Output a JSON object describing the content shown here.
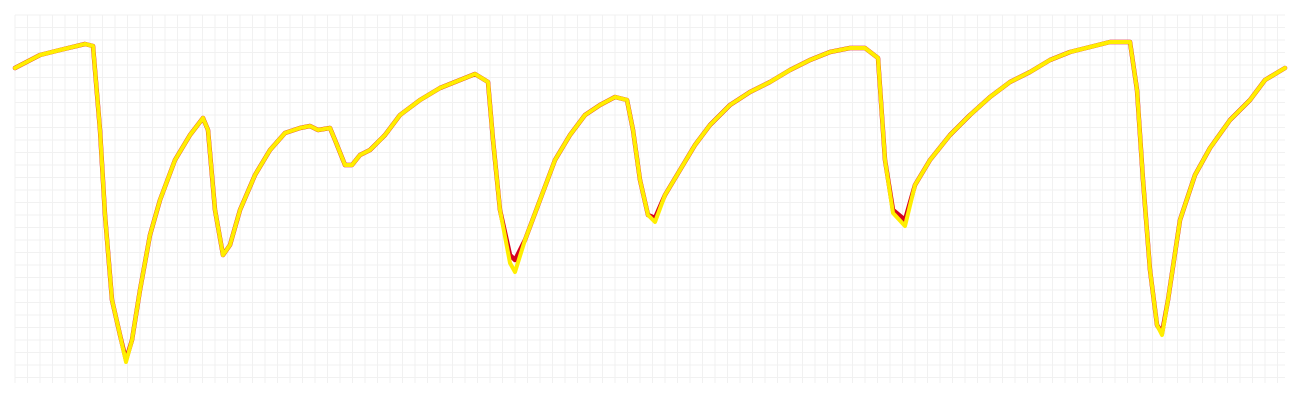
{
  "chart_data": {
    "type": "line",
    "x": [
      15,
      40,
      60,
      85,
      93,
      100,
      105,
      112,
      120,
      126,
      132,
      140,
      150,
      160,
      175,
      190,
      203,
      208,
      215,
      223,
      230,
      240,
      255,
      270,
      285,
      300,
      310,
      318,
      330,
      335,
      345,
      352,
      360,
      370,
      385,
      400,
      420,
      440,
      460,
      475,
      488,
      493,
      500,
      510,
      515,
      525,
      540,
      555,
      570,
      585,
      600,
      615,
      627,
      633,
      640,
      648,
      655,
      665,
      680,
      695,
      710,
      730,
      750,
      770,
      790,
      810,
      830,
      850,
      865,
      878,
      885,
      893,
      905,
      915,
      930,
      950,
      970,
      990,
      1010,
      1030,
      1050,
      1070,
      1090,
      1110,
      1130,
      1137,
      1143,
      1150,
      1157,
      1162,
      1168,
      1180,
      1195,
      1210,
      1230,
      1250,
      1265,
      1285
    ],
    "series": [
      {
        "color": "#d7001f",
        "values": [
          315,
          328,
          333,
          339,
          337,
          253,
          168,
          83,
          48,
          23,
          43,
          93,
          148,
          183,
          223,
          248,
          265,
          253,
          173,
          128,
          138,
          173,
          208,
          233,
          250,
          255,
          257,
          253,
          255,
          243,
          218,
          218,
          228,
          233,
          248,
          268,
          283,
          295,
          303,
          309,
          301,
          243,
          173,
          128,
          123,
          143,
          183,
          223,
          248,
          268,
          278,
          286,
          283,
          253,
          203,
          168,
          165,
          188,
          213,
          238,
          258,
          278,
          291,
          301,
          313,
          323,
          331,
          335,
          335,
          325,
          223,
          173,
          163,
          198,
          223,
          248,
          268,
          286,
          301,
          311,
          323,
          331,
          336,
          341,
          341,
          293,
          203,
          113,
          58,
          50,
          83,
          163,
          208,
          235,
          263,
          283,
          303,
          315
        ]
      },
      {
        "color": "#ffee00",
        "values": [
          315,
          328,
          333,
          339,
          337,
          253,
          168,
          83,
          48,
          21,
          43,
          93,
          148,
          183,
          223,
          248,
          265,
          253,
          173,
          128,
          138,
          173,
          208,
          233,
          250,
          255,
          257,
          253,
          255,
          243,
          218,
          218,
          228,
          233,
          248,
          268,
          283,
          295,
          303,
          309,
          301,
          243,
          173,
          120,
          111,
          143,
          183,
          223,
          248,
          268,
          278,
          286,
          283,
          253,
          203,
          168,
          161,
          188,
          213,
          238,
          258,
          278,
          291,
          301,
          313,
          323,
          331,
          335,
          335,
          325,
          223,
          170,
          157,
          198,
          223,
          248,
          268,
          286,
          301,
          311,
          323,
          331,
          336,
          341,
          341,
          293,
          203,
          113,
          58,
          48,
          83,
          163,
          208,
          235,
          263,
          283,
          303,
          315
        ]
      }
    ],
    "xlim": [
      15,
      1285
    ],
    "ylim": [
      0,
      368
    ],
    "grid": true
  }
}
